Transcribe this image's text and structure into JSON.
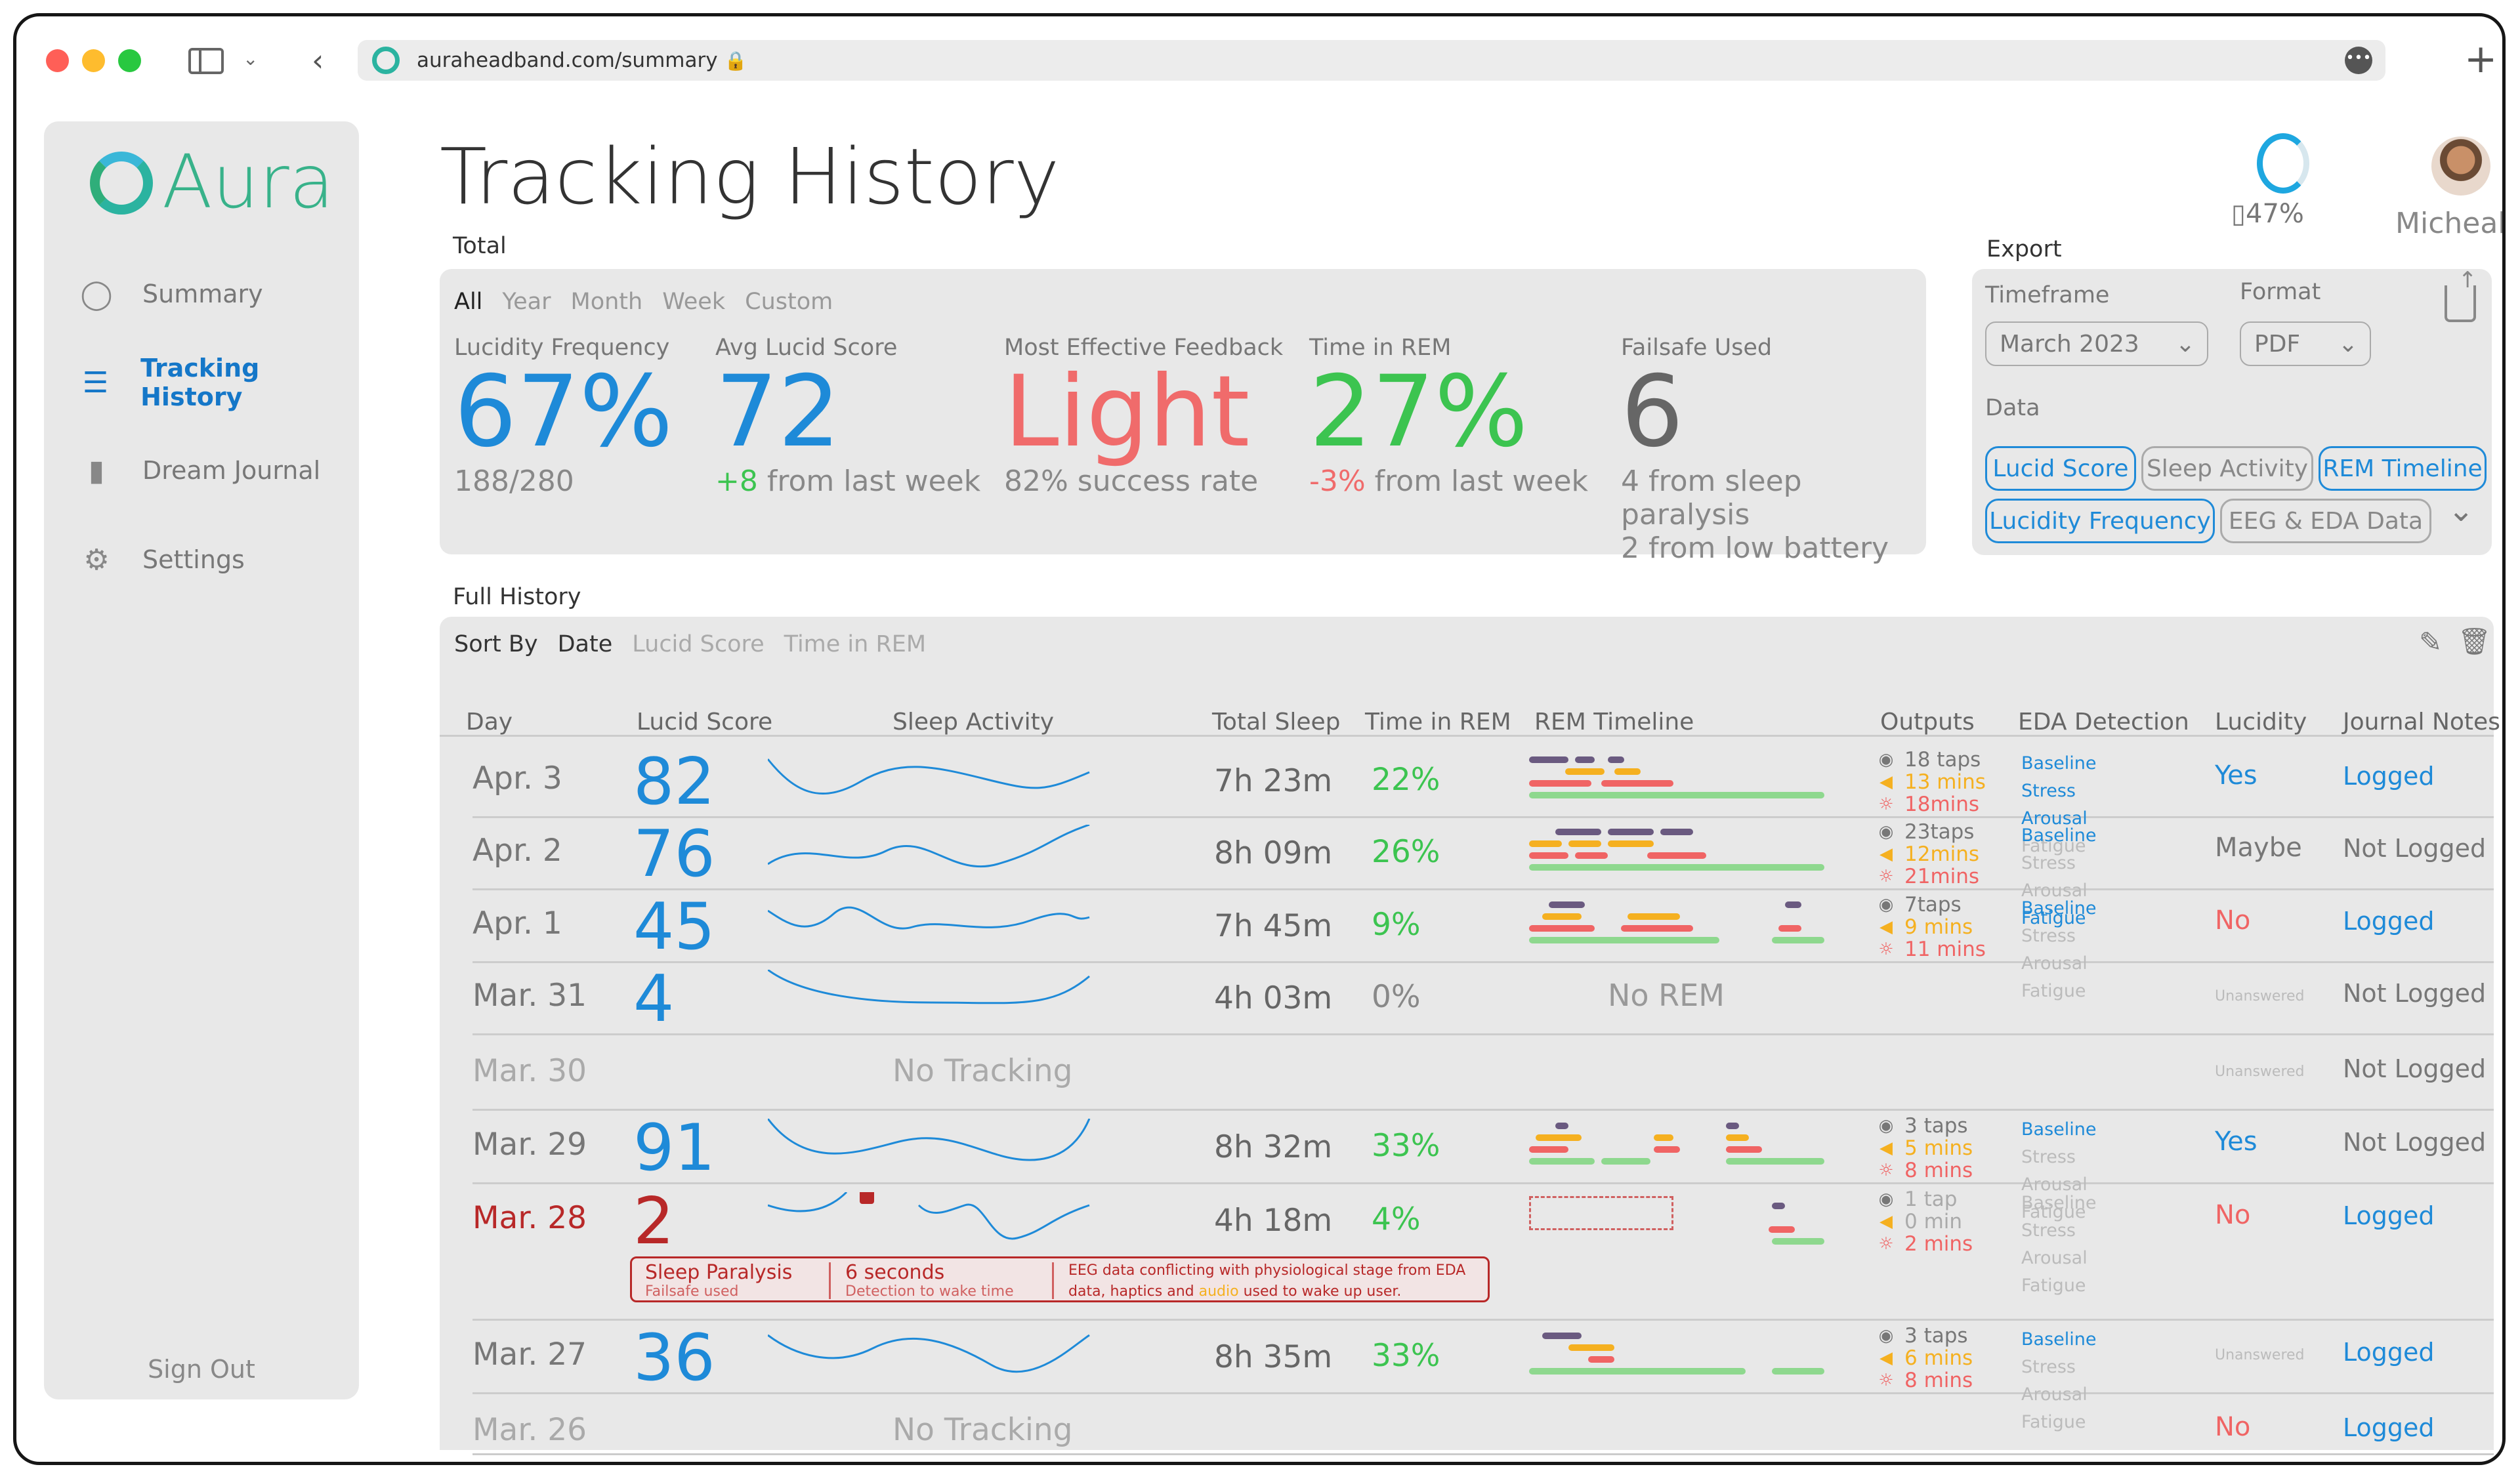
{
  "browser": {
    "url": "auraheadband.com/summary"
  },
  "sidebar": {
    "app_name": "Aura",
    "items": [
      {
        "label": "Summary"
      },
      {
        "label": "Tracking History"
      },
      {
        "label": "Dream Journal"
      },
      {
        "label": "Settings"
      }
    ],
    "sign_out": "Sign Out"
  },
  "header": {
    "title": "Tracking History",
    "battery": "47%",
    "user": "Micheal"
  },
  "total": {
    "label": "Total",
    "tabs": [
      "All",
      "Year",
      "Month",
      "Week",
      "Custom"
    ],
    "stats": [
      {
        "h": "Lucidity Frequency",
        "v": "67%",
        "s": "188/280"
      },
      {
        "h": "Avg Lucid Score",
        "v": "72",
        "s_val": "+8",
        "s": " from last week"
      },
      {
        "h": "Most Effective Feedback",
        "v": "Light",
        "s": "82% success rate"
      },
      {
        "h": "Time in REM",
        "v": "27%",
        "s_val": "-3%",
        "s": " from last week"
      },
      {
        "h": "Failsafe Used",
        "v": "6",
        "s": "4 from sleep paralysis",
        "s2": "2 from low battery"
      }
    ]
  },
  "export": {
    "label": "Export",
    "timeframe_label": "Timeframe",
    "timeframe": "March 2023",
    "format_label": "Format",
    "format": "PDF",
    "data_label": "Data",
    "pills": [
      "Lucid Score",
      "Sleep Activity",
      "REM Timeline",
      "Lucidity Frequency",
      "EEG & EDA Data"
    ]
  },
  "history": {
    "label": "Full History",
    "sort_by": "Sort By",
    "sorts": [
      "Date",
      "Lucid Score",
      "Time in REM"
    ],
    "columns": [
      "Day",
      "Lucid Score",
      "Sleep Activity",
      "Total Sleep",
      "Time in REM",
      "REM Timeline",
      "Outputs",
      "EDA Detection",
      "Lucidity",
      "Journal Notes"
    ],
    "rows": [
      {
        "day": "Apr. 3",
        "score": "82",
        "total": "7h 23m",
        "rem": "22%",
        "o1": "18 taps",
        "o2": "13 mins",
        "o3": "18mins",
        "lucidity": "Yes",
        "journal": "Logged"
      },
      {
        "day": "Apr. 2",
        "score": "76",
        "total": "8h 09m",
        "rem": "26%",
        "o1": "23taps",
        "o2": "12mins",
        "o3": "21mins",
        "lucidity": "Maybe",
        "journal": "Not Logged"
      },
      {
        "day": "Apr. 1",
        "score": "45",
        "total": "7h 45m",
        "rem": "9%",
        "o1": "7taps",
        "o2": "9 mins",
        "o3": "11 mins",
        "lucidity": "No",
        "journal": "Logged"
      },
      {
        "day": "Mar. 31",
        "score": "4",
        "total": "4h 03m",
        "rem": "0%",
        "no_rem": "No REM",
        "lucidity": "Unanswered",
        "journal": "Not Logged"
      },
      {
        "day": "Mar. 30",
        "no_tracking": "No Tracking",
        "lucidity": "Unanswered",
        "journal": "Not Logged"
      },
      {
        "day": "Mar. 29",
        "score": "91",
        "total": "8h 32m",
        "rem": "33%",
        "o1": "3 taps",
        "o2": "5 mins",
        "o3": "8 mins",
        "lucidity": "Yes",
        "journal": "Not Logged"
      },
      {
        "day": "Mar. 28",
        "score": "2",
        "total": "4h 18m",
        "rem": "4%",
        "o1": "1 tap",
        "o2": "0 min",
        "o3": "2 mins",
        "lucidity": "No",
        "journal": "Logged",
        "alert": {
          "a": "Sleep Paralysis",
          "a2": "Failsafe used",
          "b": "6 seconds",
          "b2": "Detection to wake time",
          "c": "EEG data conflicting with physiological stage from EDA",
          "c2a": "data, haptics and ",
          "c2b": "audio",
          "c2c": " used to wake up user."
        }
      },
      {
        "day": "Mar. 27",
        "score": "36",
        "total": "8h 35m",
        "rem": "33%",
        "o1": "3 taps",
        "o2": "6 mins",
        "o3": "8 mins",
        "lucidity": "Unanswered",
        "journal": "Logged"
      },
      {
        "day": "Mar. 26",
        "no_tracking": "No Tracking",
        "lucidity": "No",
        "journal": "Logged"
      }
    ],
    "eda": {
      "baseline": "Baseline",
      "stress": "Stress",
      "arousal": "Arousal",
      "fatigue": "Fatigue"
    }
  }
}
